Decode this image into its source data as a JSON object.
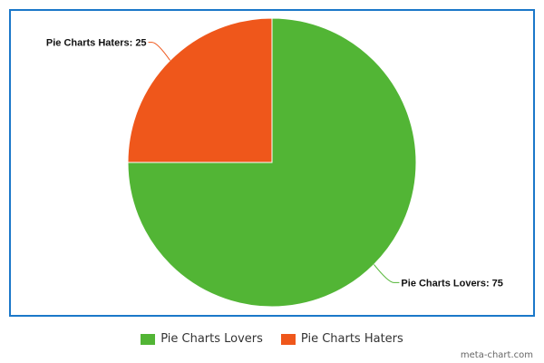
{
  "chart_data": {
    "type": "pie",
    "slices": [
      {
        "label": "Pie Charts Lovers",
        "value": 75,
        "color": "#52b535",
        "data_label": "Pie Charts Lovers: 75"
      },
      {
        "label": "Pie Charts Haters",
        "value": 25,
        "color": "#ef571b",
        "data_label": "Pie Charts Haters: 25"
      }
    ],
    "legend_placement": "bottom"
  },
  "credit": "meta-chart.com"
}
